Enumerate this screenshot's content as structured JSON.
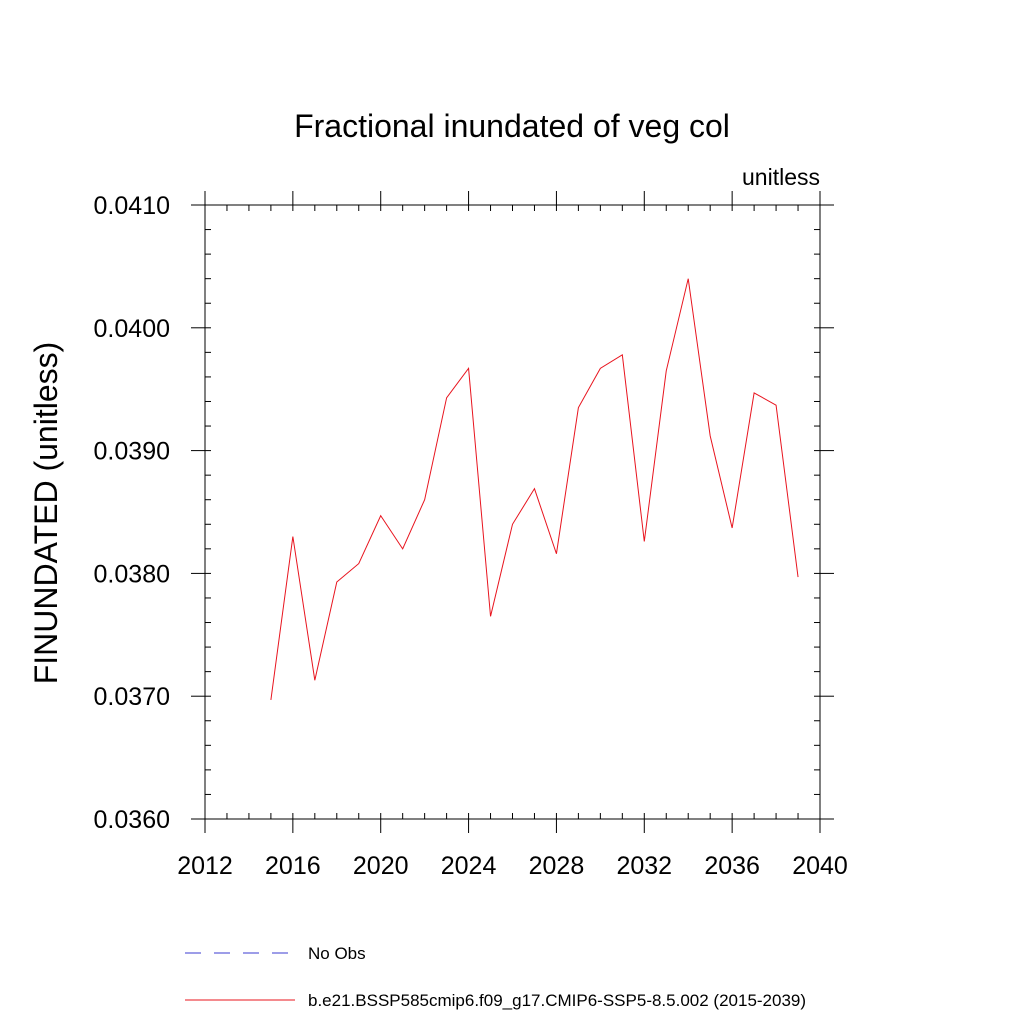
{
  "chart_data": {
    "type": "line",
    "title": "Fractional inundated of veg col",
    "units_label": "unitless",
    "ylabel": "FINUNDATED  (unitless)",
    "xlabel": "",
    "xlim": [
      2012,
      2040
    ],
    "ylim": [
      0.036,
      0.041
    ],
    "x_ticks": [
      2012,
      2016,
      2020,
      2024,
      2028,
      2032,
      2036,
      2040
    ],
    "x_tick_labels": [
      "2012",
      "2016",
      "2020",
      "2024",
      "2028",
      "2032",
      "2036",
      "2040"
    ],
    "y_ticks": [
      0.036,
      0.037,
      0.038,
      0.039,
      0.04,
      0.041
    ],
    "y_tick_labels": [
      "0.0360",
      "0.0370",
      "0.0380",
      "0.0390",
      "0.0400",
      "0.0410"
    ],
    "x_minor_step": 1,
    "y_minor_step": 0.0002,
    "grid": false,
    "legend_position": "bottom",
    "series": [
      {
        "name": "No Obs",
        "color": "#3b3bd0",
        "dash": "dashed",
        "x": [],
        "values": []
      },
      {
        "name": "b.e21.BSSP585cmip6.f09_g17.CMIP6-SSP5-8.5.002 (2015-2039)",
        "color": "#e8141e",
        "dash": "solid",
        "x": [
          2015,
          2016,
          2017,
          2018,
          2019,
          2020,
          2021,
          2022,
          2023,
          2024,
          2025,
          2026,
          2027,
          2028,
          2029,
          2030,
          2031,
          2032,
          2033,
          2034,
          2035,
          2036,
          2037,
          2038,
          2039
        ],
        "values": [
          0.03697,
          0.0383,
          0.03713,
          0.03793,
          0.03808,
          0.03847,
          0.0382,
          0.0386,
          0.03943,
          0.03967,
          0.03765,
          0.0384,
          0.03869,
          0.03816,
          0.03935,
          0.03967,
          0.03978,
          0.03826,
          0.03965,
          0.0404,
          0.03912,
          0.03837,
          0.03947,
          0.03937,
          0.03797
        ]
      }
    ]
  }
}
